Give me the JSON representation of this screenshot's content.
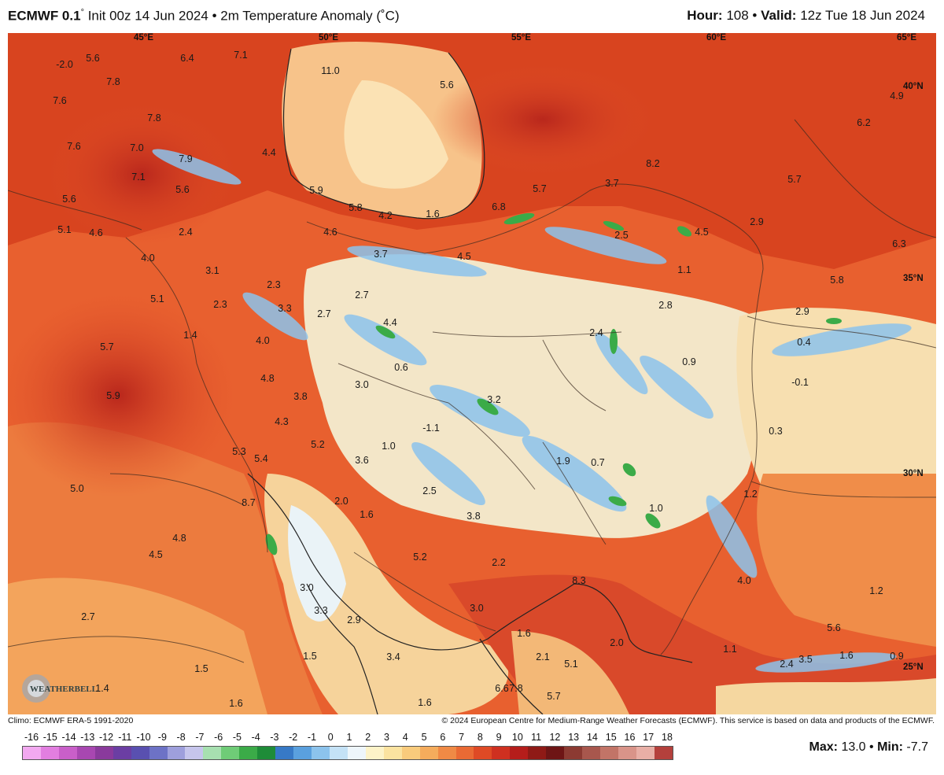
{
  "header": {
    "model": "ECMWF 0.1",
    "degree": "°",
    "init": "Init 00z 14 Jun 2024",
    "bullet": "•",
    "product": "2m Temperature Anomaly (˚C)",
    "hour_label": "Hour:",
    "hour_value": "108",
    "valid_label": "Valid:",
    "valid_value": "12z Tue 18 Jun 2024"
  },
  "coord_labels": {
    "lon_45": "45°E",
    "lon_50": "50°E",
    "lon_55": "55°E",
    "lon_60": "60°E",
    "lon_65": "65°E",
    "lat_40": "40°N",
    "lat_35": "35°N",
    "lat_30": "30°N",
    "lat_25": "25°N"
  },
  "anomaly_values": [
    "-2.0",
    "5.6",
    "6.4",
    "7.1",
    "11.0",
    "5.6",
    "7.8",
    "7.6",
    "7.6",
    "7.8",
    "4.9",
    "6.2",
    "7.0",
    "7.9",
    "4.4",
    "8.2",
    "5.7",
    "7.1",
    "5.6",
    "5.9",
    "5.8",
    "4.2",
    "1.6",
    "6.8",
    "5.7",
    "3.7",
    "2.9",
    "5.6",
    "5.1",
    "4.6",
    "2.4",
    "4.6",
    "3.7",
    "4.5",
    "2.5",
    "4.5",
    "6.3",
    "4.0",
    "5.1",
    "3.1",
    "1.1",
    "5.8",
    "2.3",
    "2.7",
    "2.8",
    "2.3",
    "3.3",
    "2.7",
    "4.4",
    "2.9",
    "5.7",
    "1.4",
    "4.0",
    "2.4",
    "0.4",
    "0.9",
    "0.6",
    "4.8",
    "3.0",
    "5.9",
    "3.8",
    "3.2",
    "-0.1",
    "4.3",
    "-1.1",
    "0.3",
    "1.0",
    "5.3",
    "5.4",
    "5.2",
    "3.6",
    "1.9",
    "0.7",
    "5.0",
    "8.7",
    "2.0",
    "2.5",
    "1.2",
    "1.6",
    "3.8",
    "1.0",
    "4.8",
    "4.5",
    "5.2",
    "2.2",
    "8.3",
    "4.0",
    "1.2",
    "3.0",
    "3.3",
    "3.0",
    "2.7",
    "2.9",
    "1.6",
    "5.6",
    "1.5",
    "3.4",
    "2.1",
    "2.0",
    "1.1",
    "2.4",
    "3.5",
    "1.6",
    "0.9",
    "1.5",
    "5.1",
    "6.6",
    "7.8",
    "5.7",
    "1.4",
    "1.6",
    "1.6"
  ],
  "footer": {
    "climo": "Climo: ECMWF ERA-5 1991-2020",
    "copyright": "© 2024 European Centre for Medium-Range Weather Forecasts (ECMWF). This service is based on data and products of the ECMWF."
  },
  "colorbar": {
    "ticks": [
      "-16",
      "-15",
      "-14",
      "-13",
      "-12",
      "-11",
      "-10",
      "-9",
      "-8",
      "-7",
      "-6",
      "-5",
      "-4",
      "-3",
      "-2",
      "-1",
      "0",
      "1",
      "2",
      "3",
      "4",
      "5",
      "6",
      "7",
      "8",
      "9",
      "10",
      "11",
      "12",
      "13",
      "14",
      "15",
      "16",
      "17",
      "18"
    ],
    "colors": [
      "#f2a9f0",
      "#e27ee0",
      "#c95fc9",
      "#a847b1",
      "#8a3a9c",
      "#6b3ea3",
      "#5950b0",
      "#6d72c6",
      "#9e9fdc",
      "#c6c5ec",
      "#a7e0b0",
      "#6fcc77",
      "#3bab48",
      "#1e8c38",
      "#3779c6",
      "#5aa0de",
      "#8cc3ec",
      "#c4e2f6",
      "#eef6fb",
      "#fdf3c8",
      "#fbe3a0",
      "#f9cb7c",
      "#f5ac5c",
      "#f08a45",
      "#ea6a34",
      "#df4a25",
      "#cf3020",
      "#b51d1b",
      "#8f1a16",
      "#6e1515",
      "#8c3a32",
      "#a8574d",
      "#c27467",
      "#d99489",
      "#e8afa6",
      "#b4403c"
    ]
  },
  "maxmin": {
    "max_label": "Max:",
    "max_value": "13.0",
    "sep": "•",
    "min_label": "Min:",
    "min_value": "-7.7"
  },
  "logo_text": "WEATHERBELL"
}
